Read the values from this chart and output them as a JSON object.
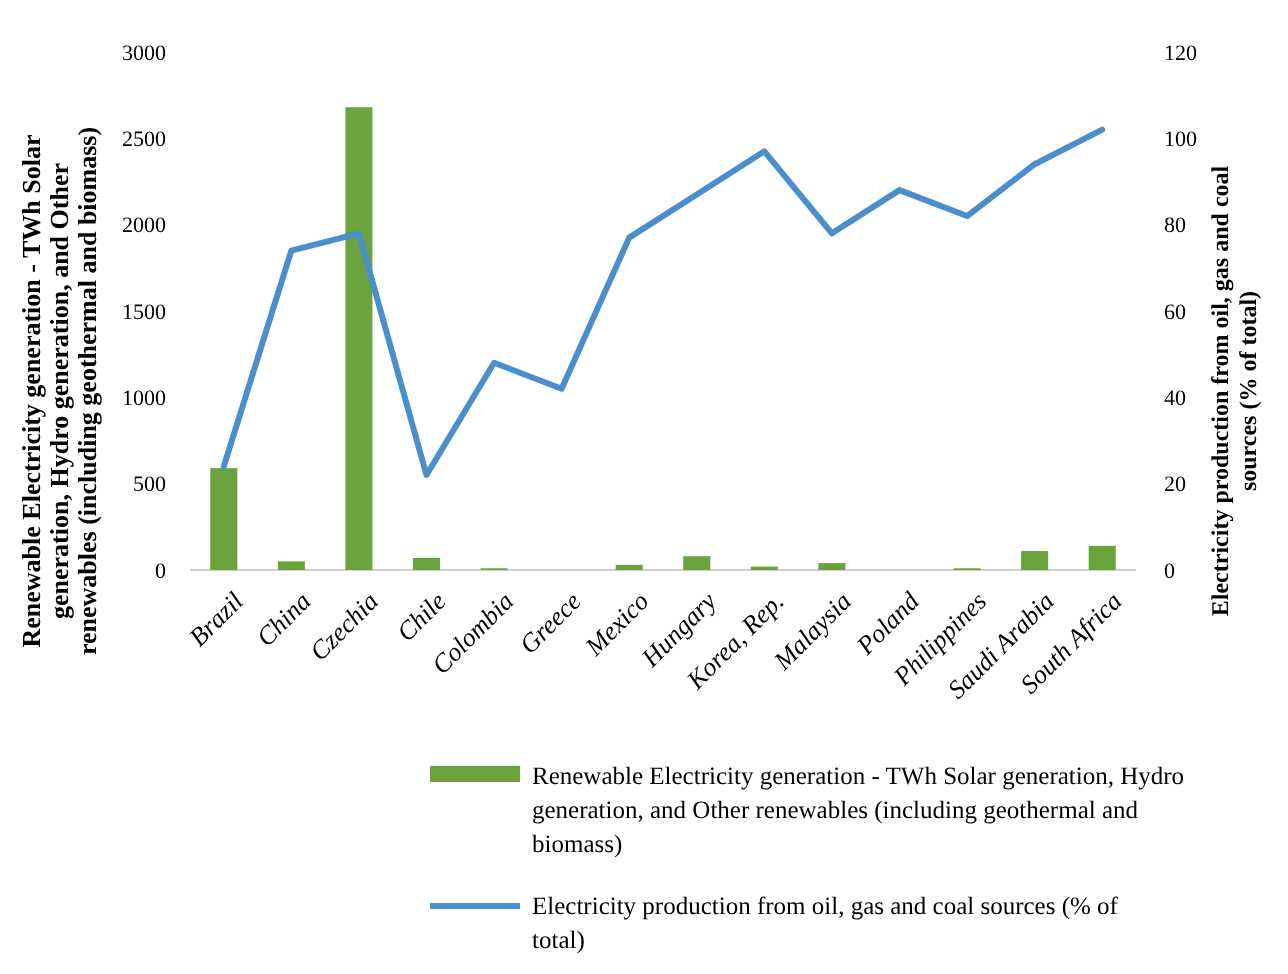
{
  "chart_data": {
    "type": "bar",
    "categories": [
      "Brazil",
      "China",
      "Czechia",
      "Chile",
      "Colombia",
      "Greece",
      "Mexico",
      "Hungary",
      "Korea, Rep.",
      "Malaysia",
      "Poland",
      "Philippines",
      "Saudi Arabia",
      "South Africa"
    ],
    "ylabel": "Renewable Electricity generation - TWh Solar generation, Hydro generation, and Other renewables (including geothermal and biomass)",
    "y2label": "Electricity production from oil, gas and coal sources (% of total)",
    "ylim": [
      0,
      3000
    ],
    "yticks": [
      0,
      500,
      1000,
      1500,
      2000,
      2500,
      3000
    ],
    "y2lim": [
      0,
      120
    ],
    "y2ticks": [
      0,
      20,
      40,
      60,
      80,
      100,
      120
    ],
    "grid": false,
    "legend": "bottom",
    "series": [
      {
        "name": "Renewable Electricity generation - TWh Solar generation, Hydro generation, and Other renewables (including geothermal and biomass)",
        "color": "#6aa23c",
        "values": [
          590,
          50,
          2680,
          70,
          10,
          0,
          30,
          80,
          20,
          40,
          0,
          10,
          110,
          140
        ]
      },
      {
        "name": "Electricity production from oil, gas and coal sources (% of total)",
        "type": "line",
        "axis": "y2",
        "color": "#4a8ecb",
        "values": [
          24,
          74,
          78,
          22,
          48,
          42,
          77,
          87,
          97,
          78,
          88,
          82,
          94,
          102
        ]
      }
    ]
  }
}
